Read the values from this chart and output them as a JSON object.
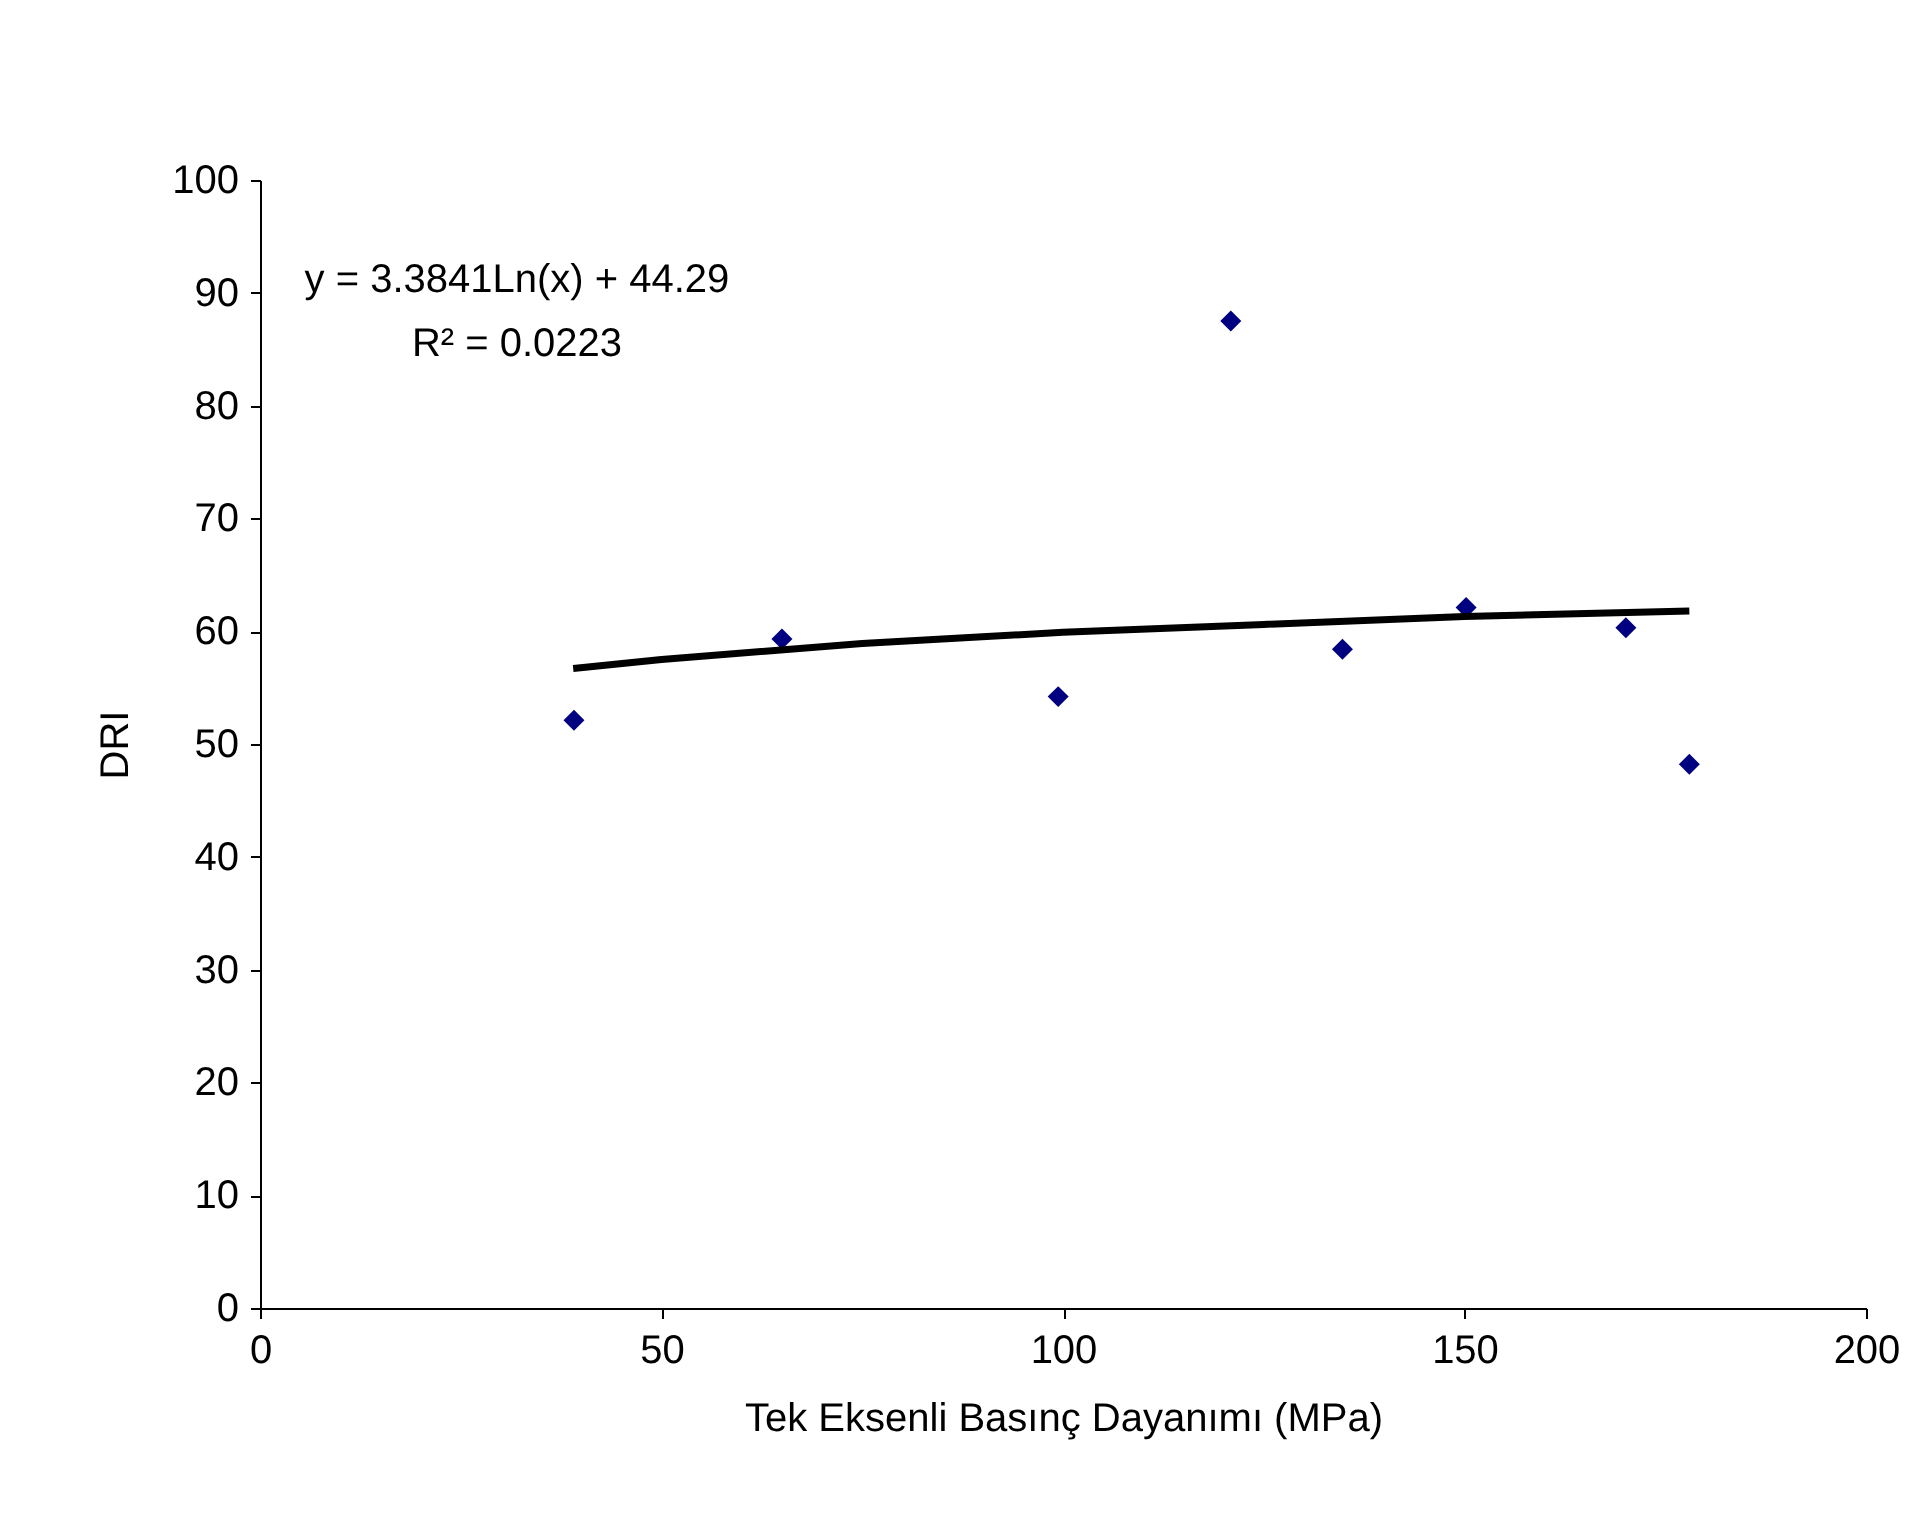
{
  "chart_data": {
    "type": "scatter",
    "xlabel": "Tek Eksenli Basınç Dayanımı (MPa)",
    "ylabel": "DRI",
    "annotations": [
      "y = 3.3841Ln(x) + 44.29",
      "R² = 0.0223"
    ],
    "xlim": [
      0,
      200
    ],
    "xticks": [
      0,
      50,
      100,
      150,
      200
    ],
    "ylim": [
      0,
      100
    ],
    "yticks": [
      0,
      10,
      20,
      30,
      40,
      50,
      60,
      70,
      80,
      90,
      100
    ],
    "grid": false,
    "legend": false,
    "marker": "diamond",
    "series": [
      {
        "color": "#000080",
        "x": [
          39.1,
          65.0,
          99.4,
          120.9,
          134.8,
          150.2,
          170.1,
          178.0
        ],
        "values": [
          52.1,
          59.3,
          54.2,
          87.5,
          58.4,
          62.1,
          60.3,
          48.2
        ]
      },
      {
        "type": "line",
        "color": "#000000",
        "marker": "none",
        "line_style": "solid",
        "x": [
          39,
          50,
          75,
          100,
          125,
          150,
          178
        ],
        "values": [
          56.7,
          57.5,
          58.9,
          59.9,
          60.6,
          61.3,
          61.8
        ]
      }
    ]
  }
}
